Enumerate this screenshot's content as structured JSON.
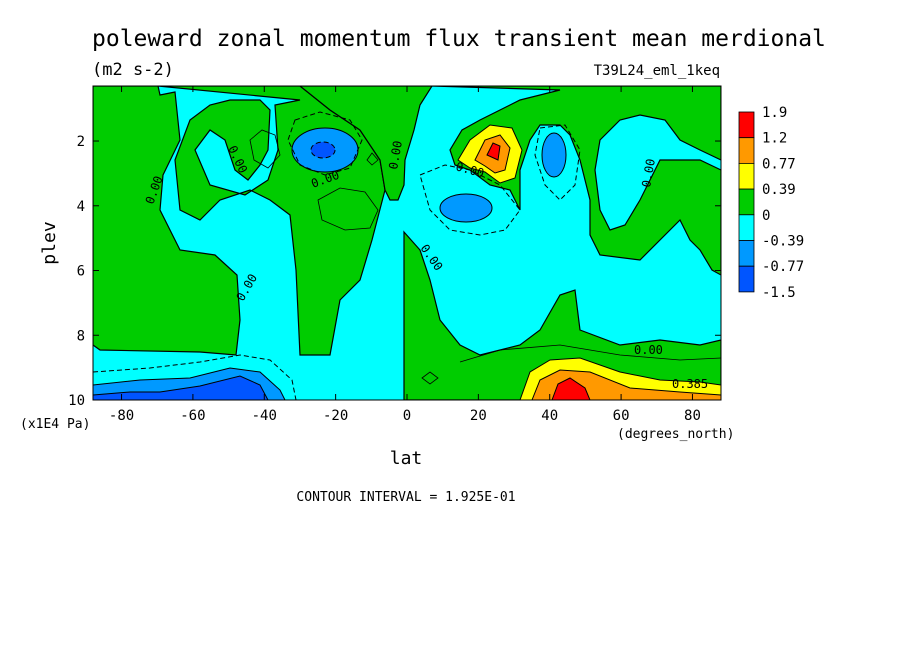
{
  "chart_data": {
    "type": "heatmap",
    "title": "poleward zonal momentum flux transient mean merdional",
    "units": "(m2 s-2)",
    "dataset": "T39L24_eml_1keq",
    "xlabel": "lat",
    "xunits": "(degrees_north)",
    "ylabel": "plev",
    "yunits": "(x1E4 Pa)",
    "xlim": [
      -88,
      88
    ],
    "ylim": [
      10,
      0.3
    ],
    "x_ticks": [
      -80,
      -60,
      -40,
      -20,
      0,
      20,
      40,
      60,
      80
    ],
    "y_ticks": [
      2,
      4,
      6,
      8,
      10
    ],
    "x_tick_labels": [
      "-80",
      "-60",
      "-40",
      "-20",
      "0",
      "20",
      "40",
      "60",
      "80"
    ],
    "y_tick_labels": [
      "2",
      "4",
      "6",
      "8",
      "10"
    ],
    "contour_interval": "CONTOUR INTERVAL = 1.925E-01",
    "colorbar": {
      "labels": [
        "1.9",
        "1.2",
        "0.77",
        "0.39",
        "0",
        "-0.39",
        "-0.77",
        "-1.5"
      ],
      "colors": [
        "#ff0000",
        "#ff9900",
        "#ffff00",
        "#00cc00",
        "#00ffff",
        "#0099ff",
        "#0055ff"
      ]
    },
    "contour_labels": [
      "0.00",
      "0.00",
      "0.00",
      "0.00",
      "0.00",
      "0.00",
      "0.00",
      "0.00",
      "0.00",
      "0.385"
    ],
    "regions": [
      {
        "name": "negative-southern-mid",
        "level": -0.39,
        "x": [
          -80,
          -30
        ],
        "y": [
          1.5,
          8.5
        ]
      },
      {
        "name": "negative-equator",
        "level": -0.39,
        "x": [
          -10,
          30
        ],
        "y": [
          3,
          9
        ]
      },
      {
        "name": "negative-northern",
        "level": -0.39,
        "x": [
          50,
          88
        ],
        "y": [
          2,
          8
        ]
      },
      {
        "name": "min-upper-south",
        "level": -0.77,
        "x": [
          -30,
          -18
        ],
        "y": [
          1.5,
          2.5
        ]
      },
      {
        "name": "min-lower-south",
        "level": -1.5,
        "x": [
          -88,
          -35
        ],
        "y": [
          9,
          10
        ]
      },
      {
        "name": "min-tropics",
        "level": -0.77,
        "x": [
          12,
          25
        ],
        "y": [
          3.7,
          4.5
        ]
      },
      {
        "name": "min-north-upper",
        "level": -0.77,
        "x": [
          40,
          46
        ],
        "y": [
          1.5,
          2.7
        ]
      },
      {
        "name": "max-upper-north",
        "level": 1.9,
        "x": [
          18,
          32
        ],
        "y": [
          1.2,
          2.7
        ]
      },
      {
        "name": "max-lower-north",
        "level": 1.9,
        "x": [
          35,
          88
        ],
        "y": [
          8.8,
          10
        ]
      }
    ]
  }
}
